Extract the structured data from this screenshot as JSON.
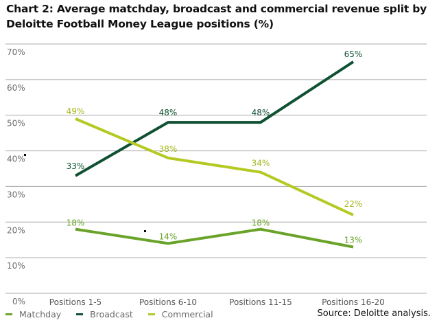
{
  "chart_data": {
    "type": "line",
    "title": "Chart 2: Average matchday, broadcast and commercial revenue split by Deloitte Football Money League positions (%)",
    "categories": [
      "Positions 1-5",
      "Positions 6-10",
      "Positions 11-15",
      "Positions 16-20"
    ],
    "ylim": [
      0,
      70
    ],
    "yticks": [
      0,
      10,
      20,
      30,
      40,
      50,
      60,
      70
    ],
    "ytick_labels": [
      "0%",
      "10%",
      "20%",
      "30%",
      "40%",
      "50%",
      "60%",
      "70%"
    ],
    "xlabel": "",
    "ylabel": "",
    "grid": true,
    "legend_position": "bottom-left",
    "series": [
      {
        "name": "Matchday",
        "color": "#6aa329",
        "label_color": "#6aa329",
        "values": [
          18,
          14,
          18,
          13
        ],
        "labels": [
          "18%",
          "14%",
          "18%",
          "13%"
        ]
      },
      {
        "name": "Broadcast",
        "color": "#0f5132",
        "label_color": "#0f5132",
        "values": [
          33,
          48,
          48,
          65
        ],
        "labels": [
          "33%",
          "48%",
          "48%",
          "65%"
        ]
      },
      {
        "name": "Commercial",
        "color": "#b5c923",
        "label_color": "#a6b71d",
        "values": [
          49,
          38,
          34,
          22
        ],
        "labels": [
          "49%",
          "38%",
          "34%",
          "22%"
        ]
      }
    ],
    "source": "Source: Deloitte analysis."
  },
  "header": {
    "title_line1": "Chart 2: Average matchday, broadcast and commercial revenue split by",
    "title_line2": "Deloitte Football Money League positions (%)"
  },
  "legend": {
    "items": [
      {
        "label": "Matchday",
        "color": "#6aa329"
      },
      {
        "label": "Broadcast",
        "color": "#0f5132"
      },
      {
        "label": "Commercial",
        "color": "#b5c923"
      }
    ]
  },
  "footer": {
    "source": "Source: Deloitte analysis."
  }
}
